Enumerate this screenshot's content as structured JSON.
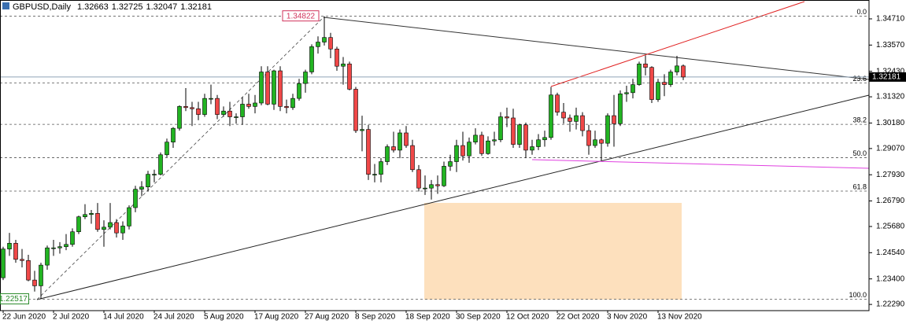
{
  "chart_data": {
    "type": "candlestick",
    "title": "GBPUSD,Daily",
    "categories": [
      "22 Jun 2020",
      null,
      null,
      null,
      null,
      null,
      null,
      null,
      "2 Jul 2020",
      null,
      null,
      null,
      null,
      null,
      null,
      null,
      "14 Jul 2020",
      null,
      null,
      null,
      null,
      null,
      null,
      null,
      "24 Jul 2020",
      null,
      null,
      null,
      null,
      null,
      null,
      null,
      "5 Aug 2020",
      null,
      null,
      null,
      null,
      null,
      null,
      null,
      "17 Aug 2020",
      null,
      null,
      null,
      null,
      null,
      null,
      null,
      "27 Aug 2020",
      null,
      null,
      null,
      null,
      null,
      null,
      null,
      "8 Sep 2020",
      null,
      null,
      null,
      null,
      null,
      null,
      null,
      "18 Sep 2020",
      null,
      null,
      null,
      null,
      null,
      null,
      null,
      "30 Sep 2020",
      null,
      null,
      null,
      null,
      null,
      null,
      null,
      "12 Oct 2020",
      null,
      null,
      null,
      null,
      null,
      null,
      null,
      "22 Oct 2020",
      null,
      null,
      null,
      null,
      null,
      null,
      null,
      "3 Nov 2020",
      null,
      null,
      null,
      null,
      null,
      null,
      null,
      "13 Nov 2020",
      null,
      null,
      null,
      null
    ],
    "open": [
      1.2345,
      1.247,
      1.2495,
      1.2425,
      1.242,
      1.2335,
      1.231,
      1.24,
      1.2475,
      1.2475,
      1.248,
      1.249,
      1.2545,
      1.261,
      1.262,
      1.2625,
      1.2555,
      1.2565,
      1.2585,
      1.254,
      1.257,
      1.265,
      1.273,
      1.274,
      1.2795,
      1.2795,
      1.288,
      1.2935,
      1.2995,
      1.309,
      1.3085,
      1.308,
      1.3055,
      1.3125,
      1.3125,
      1.3055,
      1.307,
      1.3045,
      1.3045,
      1.31,
      1.309,
      1.3105,
      1.324,
      1.31,
      1.3245,
      1.309,
      1.3085,
      1.3125,
      1.319,
      1.324,
      1.335,
      1.337,
      1.339,
      1.334,
      1.3265,
      1.3275,
      1.3165,
      1.2985,
      1.299,
      1.2795,
      1.2795,
      1.285,
      1.2915,
      1.29,
      1.2975,
      1.292,
      1.2815,
      1.2735,
      1.2735,
      1.275,
      1.2745,
      1.283,
      1.285,
      1.292,
      1.2875,
      1.2935,
      1.2965,
      1.2885,
      1.294,
      1.2945,
      1.3045,
      1.304,
      1.2925,
      1.301,
      1.29,
      1.2915,
      1.2945,
      1.2955,
      1.314,
      1.3065,
      1.304,
      1.3025,
      1.305,
      1.2985,
      1.292,
      1.2945,
      1.293,
      1.305,
      1.3015,
      1.3145,
      1.315,
      1.3185,
      1.3275,
      1.326,
      1.312,
      1.3195,
      1.3185,
      1.324,
      1.32663
    ],
    "high": [
      1.248,
      1.254,
      1.251,
      1.247,
      1.2445,
      1.2375,
      1.241,
      1.2485,
      1.251,
      1.25,
      1.2535,
      1.256,
      1.2615,
      1.2665,
      1.264,
      1.267,
      1.2595,
      1.267,
      1.26,
      1.259,
      1.266,
      1.2745,
      1.2765,
      1.281,
      1.2815,
      1.289,
      1.295,
      1.3,
      1.3095,
      1.317,
      1.311,
      1.311,
      1.3145,
      1.3185,
      1.314,
      1.309,
      1.311,
      1.306,
      1.313,
      1.3145,
      1.314,
      1.3265,
      1.3265,
      1.325,
      1.3265,
      1.312,
      1.3145,
      1.321,
      1.325,
      1.336,
      1.3395,
      1.34822,
      1.341,
      1.335,
      1.3305,
      1.3285,
      1.3175,
      1.305,
      1.301,
      1.284,
      1.2865,
      1.2925,
      1.298,
      1.299,
      1.3005,
      1.2945,
      1.2835,
      1.279,
      1.277,
      1.279,
      1.285,
      1.288,
      1.2945,
      1.298,
      1.2955,
      1.2995,
      1.298,
      1.296,
      1.298,
      1.3065,
      1.3085,
      1.308,
      1.3015,
      1.302,
      1.2945,
      1.297,
      1.2985,
      1.3175,
      1.315,
      1.3105,
      1.3055,
      1.3085,
      1.3065,
      1.301,
      1.2985,
      1.295,
      1.306,
      1.314,
      1.316,
      1.318,
      1.321,
      1.3285,
      1.33125,
      1.3265,
      1.321,
      1.323,
      1.325,
      1.331,
      1.32725
    ],
    "low": [
      1.2335,
      1.244,
      1.241,
      1.239,
      1.233,
      1.2285,
      1.22517,
      1.238,
      1.244,
      1.245,
      1.2465,
      1.248,
      1.2535,
      1.26,
      1.258,
      1.2545,
      1.248,
      1.2555,
      1.252,
      1.251,
      1.2555,
      1.263,
      1.27,
      1.272,
      1.276,
      1.279,
      1.287,
      1.291,
      1.2985,
      1.307,
      1.3005,
      1.303,
      1.3045,
      1.31,
      1.3035,
      1.3045,
      1.3005,
      1.3015,
      1.301,
      1.308,
      1.306,
      1.3095,
      1.3095,
      1.3075,
      1.307,
      1.306,
      1.3075,
      1.3115,
      1.315,
      1.323,
      1.332,
      1.3355,
      1.33,
      1.3245,
      1.3185,
      1.316,
      1.2975,
      1.2895,
      1.277,
      1.276,
      1.276,
      1.2835,
      1.289,
      1.2865,
      1.291,
      1.2805,
      1.272,
      1.2705,
      1.2685,
      1.271,
      1.274,
      1.281,
      1.2805,
      1.2855,
      1.2845,
      1.2925,
      1.2875,
      1.288,
      1.292,
      1.2935,
      1.3,
      1.291,
      1.291,
      1.2865,
      1.288,
      1.29,
      1.2915,
      1.2945,
      1.305,
      1.3015,
      1.298,
      1.299,
      1.296,
      1.288,
      1.291,
      1.2855,
      1.2915,
      1.2915,
      1.3005,
      1.311,
      1.3125,
      1.318,
      1.3225,
      1.3105,
      1.311,
      1.3135,
      1.3175,
      1.3225,
      1.32047
    ],
    "close": [
      1.247,
      1.2495,
      1.2425,
      1.242,
      1.2335,
      1.231,
      1.24,
      1.2475,
      1.2475,
      1.248,
      1.249,
      1.2545,
      1.261,
      1.262,
      1.2625,
      1.2555,
      1.2565,
      1.2585,
      1.254,
      1.257,
      1.265,
      1.273,
      1.274,
      1.2795,
      1.2795,
      1.288,
      1.2935,
      1.2995,
      1.309,
      1.3085,
      1.308,
      1.3055,
      1.3125,
      1.3125,
      1.3055,
      1.307,
      1.3045,
      1.3045,
      1.31,
      1.309,
      1.3105,
      1.324,
      1.31,
      1.3245,
      1.309,
      1.3085,
      1.3125,
      1.319,
      1.324,
      1.335,
      1.337,
      1.339,
      1.334,
      1.3265,
      1.3275,
      1.3165,
      1.2985,
      1.299,
      1.2795,
      1.2795,
      1.285,
      1.2915,
      1.29,
      1.2975,
      1.292,
      1.2815,
      1.2735,
      1.2735,
      1.275,
      1.2745,
      1.283,
      1.285,
      1.292,
      1.2875,
      1.2935,
      1.2965,
      1.2885,
      1.294,
      1.2945,
      1.3045,
      1.304,
      1.2925,
      1.301,
      1.29,
      1.2915,
      1.2945,
      1.2955,
      1.314,
      1.3065,
      1.304,
      1.3025,
      1.305,
      1.2985,
      1.292,
      1.2945,
      1.293,
      1.305,
      1.3015,
      1.3145,
      1.315,
      1.3185,
      1.3275,
      1.326,
      1.312,
      1.3195,
      1.3185,
      1.324,
      1.32663,
      1.32181
    ],
    "up_color": "#22b422",
    "down_color": "#f04848",
    "ylim": [
      1.2202,
      1.3553
    ],
    "yticks": [
      {
        "value": 1.3471,
        "label": "1.34710"
      },
      {
        "value": 1.3357,
        "label": "1.33570"
      },
      {
        "value": 1.3243,
        "label": "1.32430"
      },
      {
        "value": 1.3132,
        "label": "1.31320"
      },
      {
        "value": 1.3018,
        "label": "1.30180"
      },
      {
        "value": 1.2907,
        "label": "1.29070"
      },
      {
        "value": 1.2793,
        "label": "1.27930"
      },
      {
        "value": 1.2679,
        "label": "1.26790"
      },
      {
        "value": 1.2568,
        "label": "1.25680"
      },
      {
        "value": 1.2454,
        "label": "1.24540"
      },
      {
        "value": 1.234,
        "label": "1.23400"
      },
      {
        "value": 1.2229,
        "label": "1.22290"
      }
    ],
    "grid": false,
    "fibonacci": [
      {
        "value": 1.34822,
        "label": "0.0"
      },
      {
        "value": 1.31918,
        "label": "23.6"
      },
      {
        "value": 1.30122,
        "label": "38.2"
      },
      {
        "value": 1.2867,
        "label": "50.0"
      },
      {
        "value": 1.27218,
        "label": "61.8"
      },
      {
        "value": 1.22517,
        "label": "100.0"
      }
    ]
  }
}
